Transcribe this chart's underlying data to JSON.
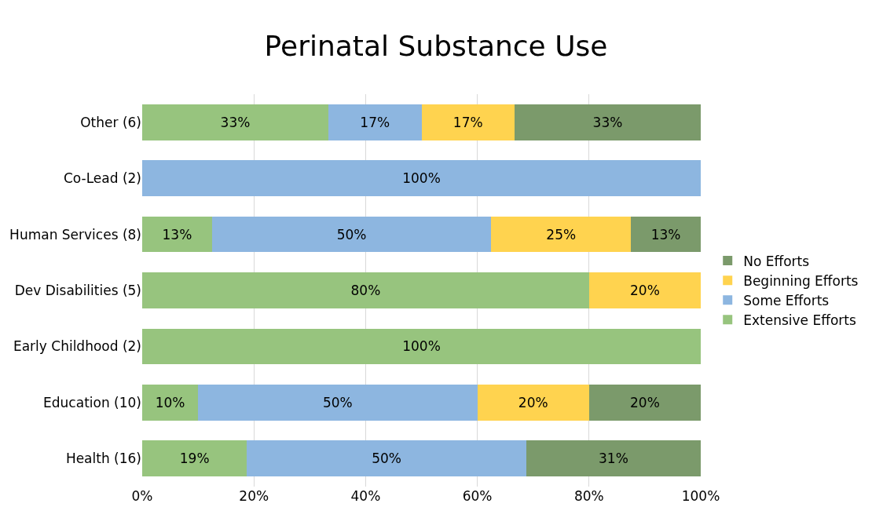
{
  "chart_data": {
    "type": "bar",
    "orientation": "horizontal",
    "stacked": true,
    "title": "Perinatal Substance Use",
    "categories": [
      "Other (6)",
      "Co-Lead (2)",
      "Human Services (8)",
      "Dev Disabilities (5)",
      "Early Childhood (2)",
      "Education (10)",
      "Health (16)"
    ],
    "series": [
      {
        "name": "Extensive Efforts",
        "color": "#97c47e",
        "values": [
          33.33,
          null,
          12.5,
          80,
          100,
          10,
          18.75
        ],
        "value_labels": [
          "33%",
          null,
          "13%",
          "80%",
          "100%",
          "10%",
          "19%"
        ]
      },
      {
        "name": "Some Efforts",
        "color": "#8db6e0",
        "values": [
          16.67,
          100,
          50,
          null,
          null,
          50,
          50
        ],
        "value_labels": [
          "17%",
          "100%",
          "50%",
          null,
          null,
          "50%",
          "50%"
        ]
      },
      {
        "name": "Beginning Efforts",
        "color": "#ffd34f",
        "values": [
          16.67,
          null,
          25,
          20,
          null,
          20,
          null
        ],
        "value_labels": [
          "17%",
          null,
          "25%",
          "20%",
          null,
          "20%",
          null
        ]
      },
      {
        "name": "No Efforts",
        "color": "#7b9a6b",
        "values": [
          33.33,
          null,
          12.5,
          null,
          null,
          20,
          31.25
        ],
        "value_labels": [
          "33%",
          null,
          "13%",
          null,
          null,
          "20%",
          "31%"
        ]
      }
    ],
    "xlim": [
      0,
      100
    ],
    "xticks": [
      {
        "value": 0,
        "label": "0%"
      },
      {
        "value": 20,
        "label": "20%"
      },
      {
        "value": 40,
        "label": "40%"
      },
      {
        "value": 60,
        "label": "60%"
      },
      {
        "value": 80,
        "label": "80%"
      },
      {
        "value": 100,
        "label": "100%"
      }
    ],
    "grid": "x",
    "legend": "right"
  }
}
